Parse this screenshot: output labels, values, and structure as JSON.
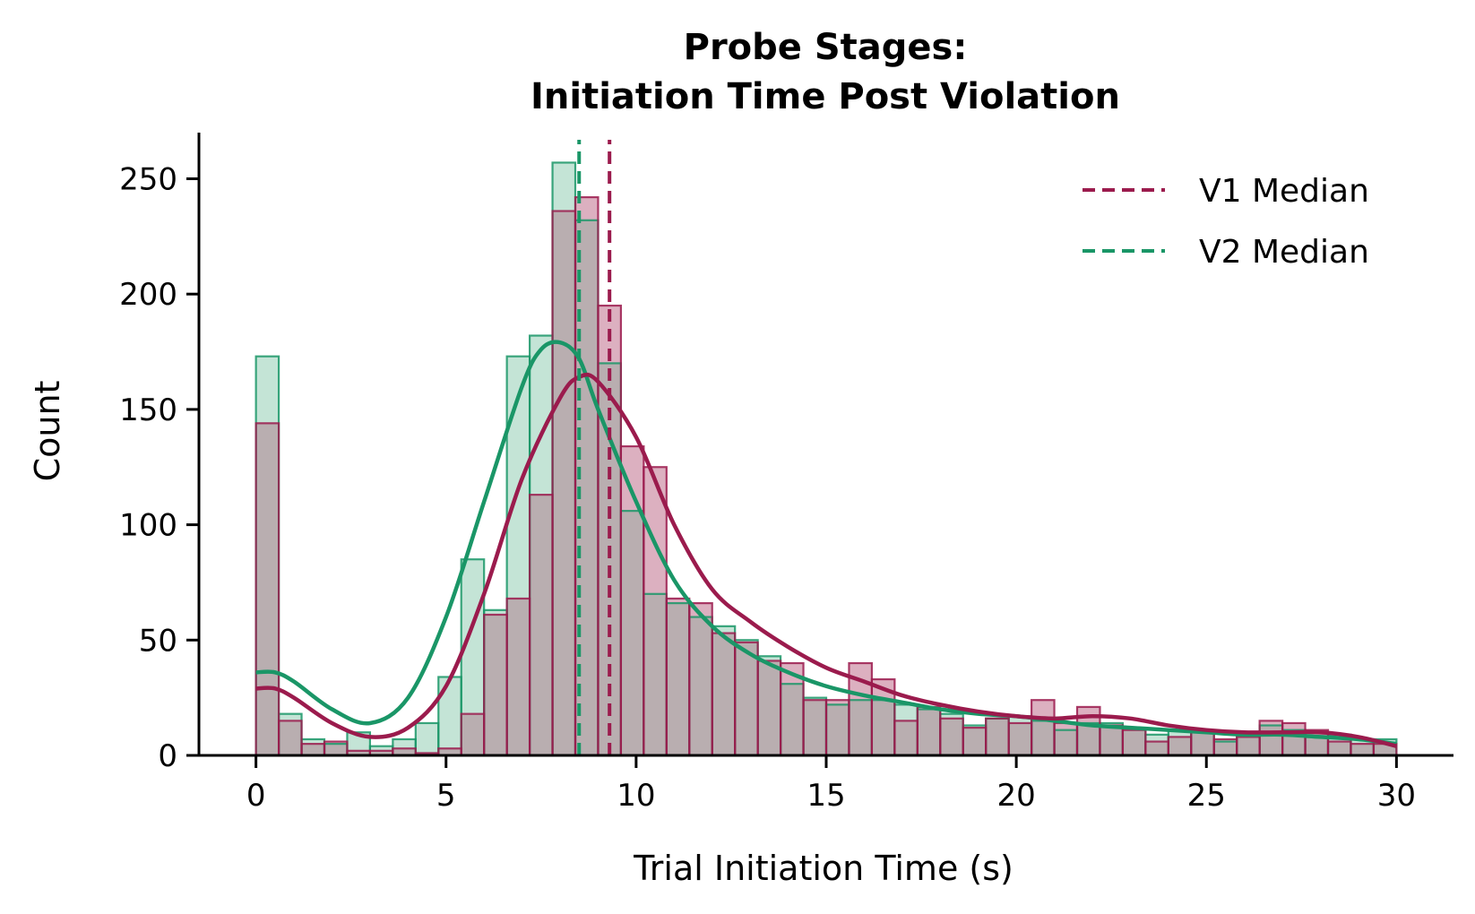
{
  "chart_data": {
    "type": "histogram",
    "title_lines": [
      "Probe Stages:",
      "Initiation Time Post Violation"
    ],
    "xlabel": "Trial Initiation Time (s)",
    "ylabel": "Count",
    "xlim": [
      -1.5,
      31.5
    ],
    "ylim": [
      0,
      270
    ],
    "xticks": [
      0,
      5,
      10,
      15,
      20,
      25,
      30
    ],
    "yticks": [
      0,
      50,
      100,
      150,
      200,
      250
    ],
    "bin_edges": [
      0,
      0.6,
      1.2,
      1.8,
      2.4,
      3.0,
      3.6,
      4.2,
      4.8,
      5.4,
      6.0,
      6.6,
      7.2,
      7.8,
      8.4,
      9.0,
      9.6,
      10.2,
      10.8,
      11.4,
      12.0,
      12.6,
      13.2,
      13.8,
      14.4,
      15.0,
      15.6,
      16.2,
      16.8,
      17.4,
      18.0,
      18.6,
      19.2,
      19.8,
      20.4,
      21.0,
      21.6,
      22.2,
      22.8,
      23.4,
      24.0,
      24.6,
      25.2,
      25.8,
      26.4,
      27.0,
      27.6,
      28.2,
      28.8,
      29.4,
      30.0
    ],
    "legend_position": "upper right",
    "series": [
      {
        "name": "V1",
        "color": "#9b1b4d",
        "fill_color": "#dcb0c0",
        "counts": [
          144,
          15,
          5,
          6,
          2,
          2,
          3,
          1,
          3,
          18,
          61,
          68,
          113,
          236,
          242,
          195,
          134,
          125,
          68,
          66,
          53,
          49,
          41,
          40,
          24,
          24,
          40,
          33,
          15,
          21,
          16,
          12,
          16,
          14,
          24,
          14,
          21,
          13,
          11,
          6,
          8,
          11,
          7,
          8,
          15,
          14,
          11,
          6,
          5,
          5
        ],
        "kde": [
          [
            0,
            29
          ],
          [
            0.5,
            29
          ],
          [
            1,
            25
          ],
          [
            2,
            14
          ],
          [
            3,
            8
          ],
          [
            4,
            12
          ],
          [
            5,
            30
          ],
          [
            6,
            70
          ],
          [
            7,
            120
          ],
          [
            8,
            155
          ],
          [
            8.5,
            164
          ],
          [
            9,
            162
          ],
          [
            10,
            138
          ],
          [
            11,
            100
          ],
          [
            12,
            72
          ],
          [
            13,
            58
          ],
          [
            14,
            47
          ],
          [
            15,
            38
          ],
          [
            16,
            32
          ],
          [
            17,
            26
          ],
          [
            18,
            22
          ],
          [
            19,
            19
          ],
          [
            20,
            17
          ],
          [
            21,
            16
          ],
          [
            22,
            17
          ],
          [
            23,
            16
          ],
          [
            24,
            13
          ],
          [
            25,
            11
          ],
          [
            26,
            10
          ],
          [
            27,
            10
          ],
          [
            28,
            10
          ],
          [
            29,
            8
          ],
          [
            30,
            4
          ]
        ],
        "median": 9.3
      },
      {
        "name": "V2",
        "color": "#1a9667",
        "fill_color": "#c4e4d6",
        "counts": [
          173,
          18,
          7,
          5,
          10,
          4,
          7,
          14,
          34,
          85,
          63,
          173,
          182,
          257,
          232,
          170,
          106,
          70,
          66,
          60,
          56,
          50,
          43,
          31,
          25,
          22,
          24,
          24,
          22,
          20,
          18,
          13,
          16,
          17,
          15,
          11,
          14,
          14,
          12,
          9,
          11,
          10,
          6,
          9,
          13,
          11,
          10,
          9,
          7,
          7
        ],
        "kde": [
          [
            0,
            36
          ],
          [
            0.5,
            36
          ],
          [
            1,
            32
          ],
          [
            2,
            20
          ],
          [
            3,
            14
          ],
          [
            4,
            25
          ],
          [
            5,
            60
          ],
          [
            6,
            110
          ],
          [
            7,
            160
          ],
          [
            7.5,
            176
          ],
          [
            8,
            179
          ],
          [
            8.5,
            172
          ],
          [
            9,
            150
          ],
          [
            10,
            110
          ],
          [
            11,
            76
          ],
          [
            12,
            56
          ],
          [
            13,
            44
          ],
          [
            14,
            36
          ],
          [
            15,
            30
          ],
          [
            16,
            26
          ],
          [
            17,
            23
          ],
          [
            18,
            20
          ],
          [
            19,
            18
          ],
          [
            20,
            17
          ],
          [
            21,
            15
          ],
          [
            22,
            13
          ],
          [
            23,
            12
          ],
          [
            24,
            11
          ],
          [
            25,
            10
          ],
          [
            26,
            9
          ],
          [
            27,
            9
          ],
          [
            28,
            8
          ],
          [
            29,
            7
          ],
          [
            30,
            5
          ]
        ],
        "median": 8.5
      }
    ],
    "overlap_color": "#b9aeb0",
    "legend_entries": [
      "V1 Median",
      "V2 Median"
    ]
  }
}
